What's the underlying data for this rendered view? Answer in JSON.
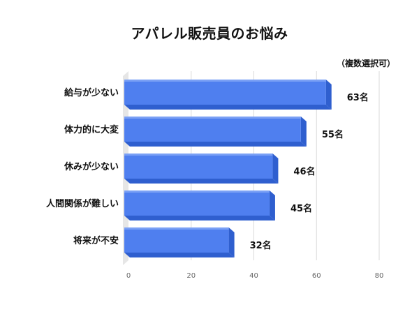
{
  "chart_data": {
    "type": "bar",
    "orientation": "horizontal",
    "title": "アパレル販売員のお悩み",
    "note": "（複数選択可）",
    "categories": [
      "給与が少ない",
      "体力的に大変",
      "休みが少ない",
      "人間関係が難しい",
      "将来が不安"
    ],
    "values": [
      63,
      55,
      46,
      45,
      32
    ],
    "value_labels": [
      "63名",
      "55名",
      "46名",
      "45名",
      "32名"
    ],
    "xlim": [
      0,
      80
    ],
    "xticks": [
      "0",
      "20",
      "40",
      "60",
      "80"
    ],
    "grid": true,
    "legend": "none",
    "colors": {
      "bar_front": "#4f7fef",
      "bar_top": "#7aa0f5",
      "bar_side": "#2f5fcf",
      "wall": "#e6e6e6",
      "grid": "#d9d9d9"
    }
  }
}
